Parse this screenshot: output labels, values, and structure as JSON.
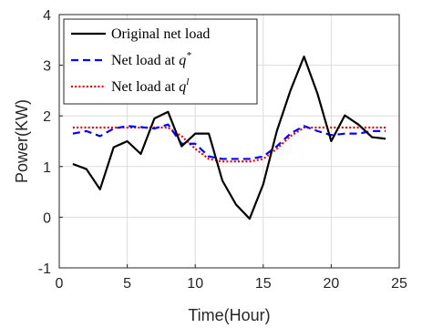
{
  "chart_data": {
    "type": "line",
    "xlabel": "Time(Hour)",
    "ylabel": "Power(KW)",
    "xlim": [
      0,
      25
    ],
    "ylim": [
      -1,
      4
    ],
    "xticks": [
      0,
      5,
      10,
      15,
      20,
      25
    ],
    "yticks": [
      -1,
      0,
      1,
      2,
      3,
      4
    ],
    "grid": true,
    "legend_position": "top-left",
    "x": [
      1,
      2,
      3,
      4,
      5,
      6,
      7,
      8,
      9,
      10,
      11,
      12,
      13,
      14,
      15,
      16,
      17,
      18,
      19,
      20,
      21,
      22,
      23,
      24
    ],
    "series": [
      {
        "name": "Original net load",
        "legend_parts": [
          "Original net load"
        ],
        "color": "#000000",
        "style": "solid",
        "values": [
          1.05,
          0.95,
          0.55,
          1.38,
          1.5,
          1.25,
          1.95,
          2.08,
          1.4,
          1.65,
          1.65,
          0.72,
          0.25,
          -0.03,
          0.65,
          1.7,
          2.5,
          3.17,
          2.43,
          1.5,
          2.01,
          1.83,
          1.58,
          1.55
        ]
      },
      {
        "name": "Net load at q*",
        "legend_parts": [
          "Net load at ",
          "q",
          "*"
        ],
        "color": "#0000ff",
        "style": "dashed",
        "values": [
          1.65,
          1.7,
          1.6,
          1.75,
          1.8,
          1.78,
          1.75,
          1.83,
          1.45,
          1.45,
          1.2,
          1.15,
          1.15,
          1.15,
          1.2,
          1.4,
          1.65,
          1.8,
          1.7,
          1.62,
          1.65,
          1.65,
          1.7,
          1.7
        ]
      },
      {
        "name": "Net load at ql",
        "legend_parts": [
          "Net load at ",
          "q",
          "l"
        ],
        "color": "#ff0000",
        "style": "dotted",
        "values": [
          1.77,
          1.77,
          1.77,
          1.77,
          1.77,
          1.77,
          1.77,
          1.77,
          1.6,
          1.35,
          1.15,
          1.1,
          1.1,
          1.1,
          1.15,
          1.35,
          1.6,
          1.77,
          1.77,
          1.77,
          1.77,
          1.77,
          1.77,
          1.77
        ]
      }
    ]
  }
}
